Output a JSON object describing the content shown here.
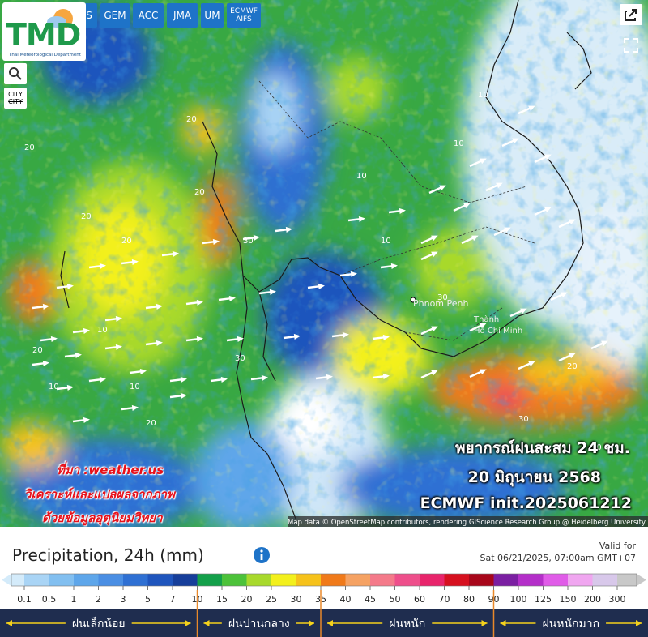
{
  "toolbar": {
    "partial": "S",
    "buttons": [
      "GEM",
      "ACC",
      "JMA",
      "UM"
    ],
    "stacked_button": [
      "ECMWF",
      "AIFS"
    ]
  },
  "logo": {
    "title": "TMD",
    "subtitle": "Thai Meteorological Department"
  },
  "city_button": [
    "CITY",
    "CITY"
  ],
  "overlay": {
    "forecast": [
      "พยากรณ์ฝนสะสม 24 ชม.",
      "20 มิถุนายน 2568",
      "ECMWF init.2025061212"
    ],
    "credit": [
      "ที่มา :weather.us",
      "วิเคราะห์และแปลผลจากภาพ",
      "ด้วยข้อมูลอุตุนิยมวิทยา"
    ],
    "attribution": "Map data © OpenStreetMap contributors, rendering GIScience Research Group @ Heidelberg University"
  },
  "map": {
    "places": [
      "Phnom Penh",
      "Thành",
      "Hồ Chí Minh"
    ],
    "contour_labels": [
      "20",
      "20",
      "20",
      "20",
      "10",
      "10",
      "30",
      "10",
      "20",
      "10",
      "10",
      "30",
      "20",
      "10",
      "10",
      "30",
      "20",
      "10",
      "30",
      "20"
    ]
  },
  "panel": {
    "title": "Precipitation, 24h (mm)",
    "valid_label": "Valid for",
    "valid_time": "Sat 06/21/2025, 07:00am GMT+07",
    "scale": {
      "ticks": [
        0.1,
        0.5,
        1,
        2,
        3,
        5,
        7,
        10,
        15,
        20,
        25,
        30,
        35,
        40,
        45,
        50,
        60,
        70,
        80,
        90,
        100,
        125,
        150,
        200,
        300
      ],
      "colors": [
        "#d4ebfa",
        "#a9d4f5",
        "#82bff0",
        "#5ea6ea",
        "#4a8ee3",
        "#2f70d3",
        "#1f55bd",
        "#163e9a",
        "#14a04a",
        "#4cc23a",
        "#a8d92c",
        "#f3f01c",
        "#f6c21a",
        "#f07a1a",
        "#f5a263",
        "#f47a8a",
        "#ee4f8b",
        "#e8246b",
        "#d6101f",
        "#a8071a",
        "#7b1fa2",
        "#b42fc9",
        "#e05ce8",
        "#f0a6f0",
        "#d8c8ea",
        "#c8c8c8"
      ]
    },
    "categories": [
      "ฝนเล็กน้อย",
      "ฝนปานกลาง",
      "ฝนหนัก",
      "ฝนหนักมาก"
    ]
  }
}
